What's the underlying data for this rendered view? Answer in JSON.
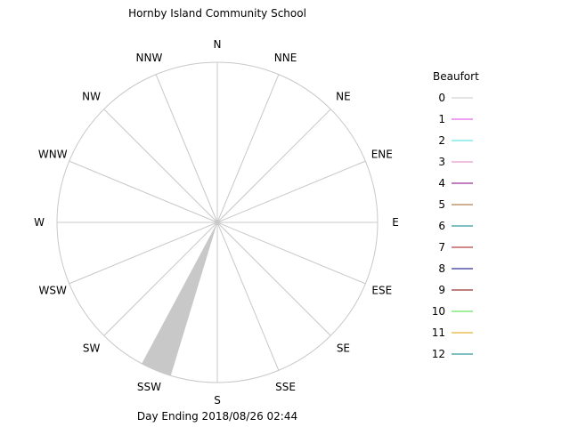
{
  "chart_data": {
    "type": "wind-rose",
    "title": "Hornby Island Community School",
    "footer": "Day Ending 2018/08/26 02:44",
    "directions": [
      "N",
      "NNE",
      "NE",
      "ENE",
      "E",
      "ESE",
      "SE",
      "SSE",
      "S",
      "SSW",
      "SW",
      "WSW",
      "W",
      "WNW",
      "NW",
      "NNW"
    ],
    "legend": {
      "title": "Beaufort",
      "entries": [
        {
          "label": "0",
          "color": "#c8c8c8"
        },
        {
          "label": "1",
          "color": "#e040e0"
        },
        {
          "label": "2",
          "color": "#40e0e0"
        },
        {
          "label": "3",
          "color": "#e080c0"
        },
        {
          "label": "4",
          "color": "#800080"
        },
        {
          "label": "5",
          "color": "#a06020"
        },
        {
          "label": "6",
          "color": "#008080"
        },
        {
          "label": "7",
          "color": "#a01010"
        },
        {
          "label": "8",
          "color": "#000080"
        },
        {
          "label": "9",
          "color": "#800000"
        },
        {
          "label": "10",
          "color": "#40e040"
        },
        {
          "label": "11",
          "color": "#e0a000"
        },
        {
          "label": "12",
          "color": "#008080"
        }
      ]
    },
    "petals": [
      {
        "direction": "SSW",
        "beaufort": "0",
        "fraction_of_radius": 1.0
      }
    ],
    "spoke_color": "#c8c8c8",
    "circle_color": "#c8c8c8"
  }
}
